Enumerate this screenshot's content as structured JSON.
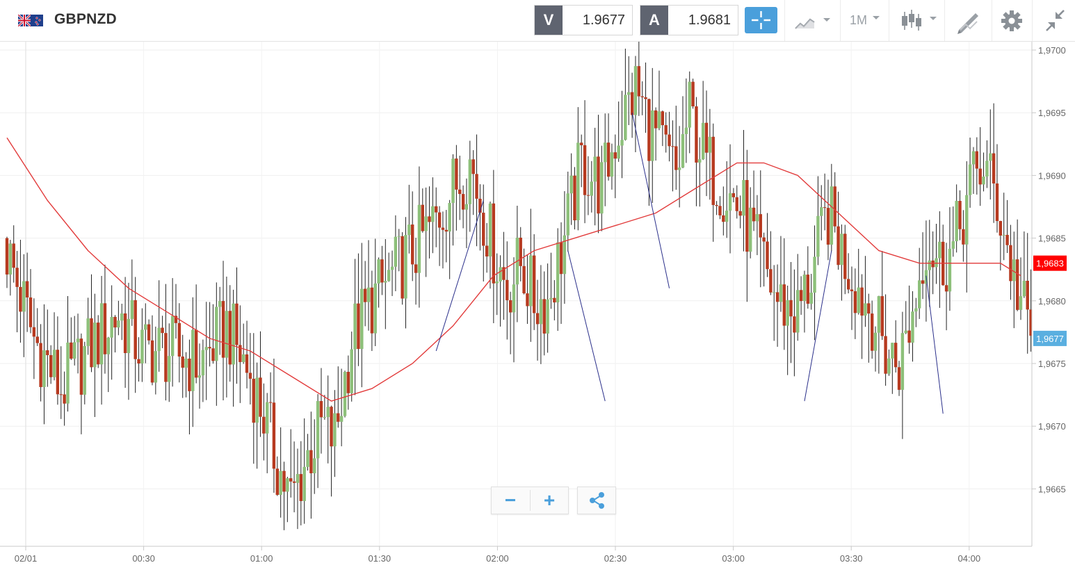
{
  "header": {
    "symbol": "GBPNZD",
    "sell_tag": "V",
    "sell_price": "1.9677",
    "buy_tag": "A",
    "buy_price": "1.9681",
    "timeframe": "1M",
    "icons": [
      "uk-nz-flag-icon",
      "crosshair-icon",
      "line-chart-icon",
      "candlestick-icon",
      "drawing-tool-icon",
      "gear-icon",
      "collapse-icon"
    ]
  },
  "zoom": {
    "minus": "−",
    "plus": "+",
    "share_icon": "share-icon"
  },
  "colors": {
    "up": "#8dc07a",
    "down": "#b73a20",
    "ma": "#e23b3b",
    "trend": "#2a2f8a",
    "badge_red": "#ff0000",
    "badge_blue": "#5aafe0"
  },
  "chart_data": {
    "type": "candlestick",
    "instrument": "GBPNZD",
    "interval": "1M",
    "ylim": [
      1.9661,
      1.97
    ],
    "y_ticks": [
      "1,9700",
      "1,9695",
      "1,9690",
      "1,9685",
      "1,9680",
      "1,9675",
      "1,9670",
      "1,9665"
    ],
    "x_ticks": [
      "02/01",
      "00:30",
      "01:00",
      "01:30",
      "02:00",
      "02:30",
      "03:00",
      "03:30",
      "04:00"
    ],
    "grid": true,
    "price_badges": [
      {
        "label": "1,9683",
        "value": 1.9683,
        "color": "#ff0000"
      },
      {
        "label": "1,9677",
        "value": 1.9677,
        "color": "#5aafe0"
      }
    ],
    "close_path": [
      [
        0,
        1.9684
      ],
      [
        8,
        1.9677
      ],
      [
        16,
        1.9673
      ],
      [
        24,
        1.9676
      ],
      [
        33,
        1.9679
      ],
      [
        40,
        1.9676
      ],
      [
        48,
        1.9676
      ],
      [
        57,
        1.9675
      ],
      [
        65,
        1.9678
      ],
      [
        72,
        1.9674
      ],
      [
        76,
        1.9671
      ],
      [
        80,
        1.9667
      ],
      [
        84,
        1.9664
      ],
      [
        88,
        1.9667
      ],
      [
        93,
        1.967
      ],
      [
        97,
        1.9669
      ],
      [
        102,
        1.9677
      ],
      [
        108,
        1.968
      ],
      [
        114,
        1.9682
      ],
      [
        120,
        1.9684
      ],
      [
        126,
        1.9686
      ],
      [
        132,
        1.9689
      ],
      [
        137,
        1.9691
      ],
      [
        140,
        1.9688
      ],
      [
        144,
        1.9684
      ],
      [
        148,
        1.9681
      ],
      [
        152,
        1.9683
      ],
      [
        156,
        1.968
      ],
      [
        160,
        1.968
      ],
      [
        165,
        1.9685
      ],
      [
        170,
        1.9691
      ],
      [
        176,
        1.9689
      ],
      [
        180,
        1.9693
      ],
      [
        186,
        1.9697
      ],
      [
        190,
        1.9694
      ],
      [
        194,
        1.9692
      ],
      [
        198,
        1.969
      ],
      [
        202,
        1.9695
      ],
      [
        207,
        1.9691
      ],
      [
        212,
        1.9689
      ],
      [
        218,
        1.9687
      ],
      [
        222,
        1.9684
      ],
      [
        228,
        1.968
      ],
      [
        234,
        1.9679
      ],
      [
        238,
        1.9682
      ],
      [
        243,
        1.9687
      ],
      [
        247,
        1.9684
      ],
      [
        252,
        1.9681
      ],
      [
        256,
        1.9679
      ],
      [
        260,
        1.9676
      ],
      [
        264,
        1.9675
      ],
      [
        268,
        1.9679
      ],
      [
        272,
        1.9685
      ],
      [
        276,
        1.9683
      ],
      [
        280,
        1.9684
      ],
      [
        285,
        1.9689
      ],
      [
        289,
        1.9691
      ],
      [
        293,
        1.9688
      ],
      [
        297,
        1.9683
      ],
      [
        300,
        1.968
      ],
      [
        303,
        1.9677
      ]
    ],
    "moving_average": [
      [
        0,
        1.9693
      ],
      [
        12,
        1.9688
      ],
      [
        24,
        1.9684
      ],
      [
        36,
        1.9681
      ],
      [
        48,
        1.9679
      ],
      [
        60,
        1.9677
      ],
      [
        72,
        1.9676
      ],
      [
        84,
        1.9674
      ],
      [
        96,
        1.9672
      ],
      [
        108,
        1.9673
      ],
      [
        120,
        1.9675
      ],
      [
        132,
        1.9678
      ],
      [
        144,
        1.9682
      ],
      [
        156,
        1.9684
      ],
      [
        168,
        1.9685
      ],
      [
        180,
        1.9686
      ],
      [
        192,
        1.9687
      ],
      [
        204,
        1.9689
      ],
      [
        216,
        1.9691
      ],
      [
        224,
        1.9691
      ],
      [
        234,
        1.969
      ],
      [
        246,
        1.9687
      ],
      [
        258,
        1.9684
      ],
      [
        270,
        1.9683
      ],
      [
        282,
        1.9683
      ],
      [
        294,
        1.9683
      ],
      [
        300,
        1.9682
      ]
    ],
    "trend_lines": [
      {
        "from": [
          127,
          1.9676
        ],
        "to": [
          141,
          1.9688
        ]
      },
      {
        "from": [
          166,
          1.9684
        ],
        "to": [
          177,
          1.9672
        ]
      },
      {
        "from": [
          185,
          1.9695
        ],
        "to": [
          196,
          1.9681
        ]
      },
      {
        "from": [
          236,
          1.9672
        ],
        "to": [
          244,
          1.9684
        ]
      },
      {
        "from": [
          272,
          1.9682
        ],
        "to": [
          277,
          1.9671
        ]
      }
    ]
  }
}
